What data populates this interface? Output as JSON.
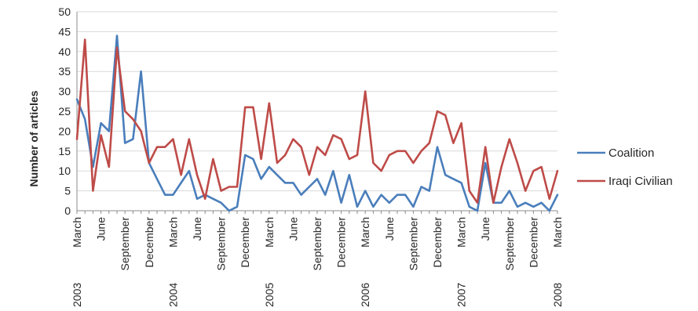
{
  "chart_data": {
    "type": "line",
    "ylabel": "Number of articles",
    "ylim": [
      0,
      50
    ],
    "yticks": [
      0,
      5,
      10,
      15,
      20,
      25,
      30,
      35,
      40,
      45,
      50
    ],
    "grid": "horizontal",
    "legend_position": "right",
    "x_start": "2003-03",
    "x_end": "2008-03",
    "x_tick_labels": [
      {
        "month": 0,
        "text": "March"
      },
      {
        "month": 3,
        "text": "June"
      },
      {
        "month": 6,
        "text": "September"
      },
      {
        "month": 9,
        "text": "December"
      },
      {
        "month": 12,
        "text": "March"
      },
      {
        "month": 15,
        "text": "June"
      },
      {
        "month": 18,
        "text": "September"
      },
      {
        "month": 21,
        "text": "December"
      },
      {
        "month": 24,
        "text": "March"
      },
      {
        "month": 27,
        "text": "June"
      },
      {
        "month": 30,
        "text": "September"
      },
      {
        "month": 33,
        "text": "December"
      },
      {
        "month": 36,
        "text": "March"
      },
      {
        "month": 39,
        "text": "June"
      },
      {
        "month": 42,
        "text": "September"
      },
      {
        "month": 45,
        "text": "December"
      },
      {
        "month": 48,
        "text": "March"
      },
      {
        "month": 51,
        "text": "June"
      },
      {
        "month": 54,
        "text": "September"
      },
      {
        "month": 57,
        "text": "December"
      },
      {
        "month": 60,
        "text": "March"
      }
    ],
    "year_labels": [
      {
        "month": 0,
        "text": "2003"
      },
      {
        "month": 12,
        "text": "2004"
      },
      {
        "month": 24,
        "text": "2005"
      },
      {
        "month": 36,
        "text": "2006"
      },
      {
        "month": 48,
        "text": "2007"
      },
      {
        "month": 60,
        "text": "2008"
      }
    ],
    "series": [
      {
        "name": "Coalition",
        "color": "#4a7ebb",
        "values": [
          28,
          23,
          11,
          22,
          20,
          44,
          17,
          18,
          35,
          12,
          8,
          4,
          4,
          7,
          10,
          3,
          4,
          3,
          2,
          0,
          1,
          14,
          13,
          8,
          11,
          9,
          7,
          7,
          4,
          6,
          8,
          4,
          10,
          2,
          9,
          1,
          5,
          1,
          4,
          2,
          4,
          4,
          1,
          6,
          5,
          16,
          9,
          8,
          7,
          1,
          0,
          12,
          2,
          2,
          5,
          1,
          2,
          1,
          2,
          0,
          4
        ]
      },
      {
        "name": "Iraqi Civilian",
        "color": "#be4b48",
        "values": [
          18,
          43,
          5,
          19,
          11,
          41,
          25,
          23,
          20,
          12,
          16,
          16,
          18,
          9,
          18,
          9,
          3,
          13,
          5,
          6,
          6,
          26,
          26,
          13,
          27,
          12,
          14,
          18,
          16,
          9,
          16,
          14,
          19,
          18,
          13,
          14,
          30,
          12,
          10,
          14,
          15,
          15,
          12,
          15,
          17,
          25,
          24,
          17,
          22,
          5,
          2,
          16,
          2,
          11,
          18,
          12,
          5,
          10,
          11,
          3,
          10
        ]
      }
    ]
  }
}
